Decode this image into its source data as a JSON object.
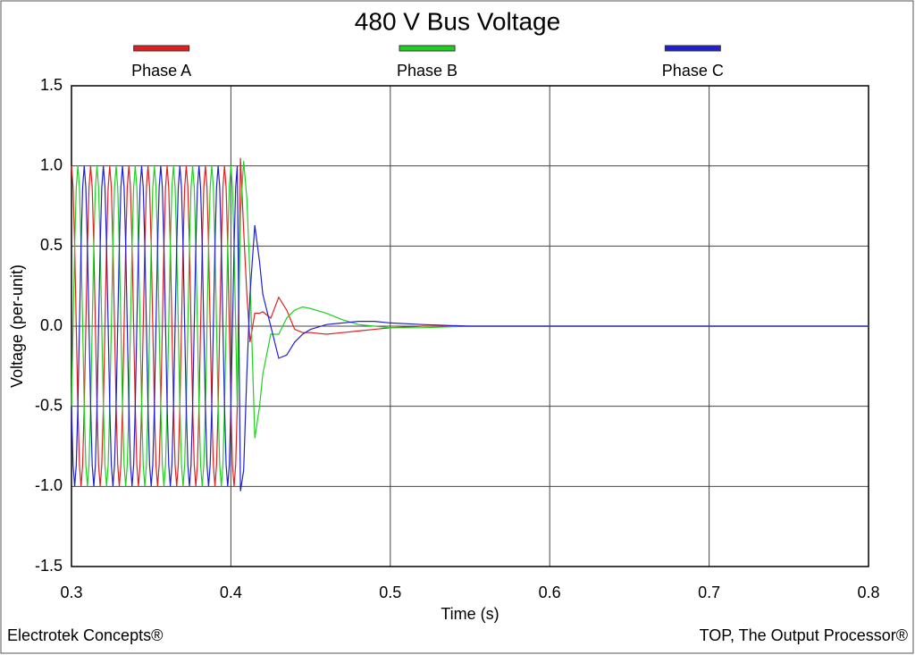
{
  "chart_data": {
    "type": "line",
    "title": "480 V Bus Voltage",
    "x_label": "Time (s)",
    "y_label": "Voltage (per-unit)",
    "footer_left": "Electrotek Concepts®",
    "footer_right": "TOP, The Output Processor®",
    "xlim": [
      0.3,
      0.8
    ],
    "ylim": [
      -1.5,
      1.5
    ],
    "xticks": [
      0.3,
      0.4,
      0.5,
      0.6,
      0.7,
      0.8
    ],
    "yticks": [
      -1.5,
      {
        "value": -1,
        "label": "-1.0"
      },
      -0.5,
      {
        "value": 0,
        "label": "0.0"
      },
      0.5,
      {
        "value": 1,
        "label": "1.0"
      },
      1.5
    ],
    "grid": true,
    "x": [
      0.3,
      0.301,
      0.302,
      0.303,
      0.304,
      0.305,
      0.306,
      0.307,
      0.308,
      0.309,
      0.31,
      0.311,
      0.312,
      0.313,
      0.314,
      0.315,
      0.316,
      0.317,
      0.318,
      0.319,
      0.32,
      0.321,
      0.322,
      0.323,
      0.324,
      0.325,
      0.326,
      0.327,
      0.328,
      0.329,
      0.33,
      0.331,
      0.332,
      0.333,
      0.334,
      0.335,
      0.336,
      0.337,
      0.338,
      0.339,
      0.34,
      0.341,
      0.342,
      0.343,
      0.344,
      0.345,
      0.346,
      0.347,
      0.348,
      0.349,
      0.35,
      0.351,
      0.352,
      0.353,
      0.354,
      0.355,
      0.356,
      0.357,
      0.358,
      0.359,
      0.36,
      0.361,
      0.362,
      0.363,
      0.364,
      0.365,
      0.366,
      0.367,
      0.368,
      0.369,
      0.37,
      0.371,
      0.372,
      0.373,
      0.374,
      0.375,
      0.376,
      0.377,
      0.378,
      0.379,
      0.38,
      0.381,
      0.382,
      0.383,
      0.384,
      0.385,
      0.386,
      0.387,
      0.388,
      0.389,
      0.39,
      0.391,
      0.392,
      0.393,
      0.394,
      0.395,
      0.396,
      0.397,
      0.398,
      0.399,
      0.4,
      0.401,
      0.402,
      0.403,
      0.404,
      0.406,
      0.408,
      0.41,
      0.412,
      0.415,
      0.418,
      0.42,
      0.425,
      0.43,
      0.435,
      0.44,
      0.445,
      0.45,
      0.46,
      0.47,
      0.48,
      0.49,
      0.5,
      0.52,
      0.55,
      0.6,
      0.7,
      0.8
    ],
    "series": [
      {
        "name": "Phase A",
        "color": "#e02020",
        "values": [
          1,
          0.866,
          0.5,
          0,
          -0.5,
          -0.866,
          -1,
          -0.866,
          -0.5,
          0,
          0.5,
          0.866,
          1,
          0.866,
          0.5,
          0,
          -0.5,
          -0.866,
          -1,
          -0.866,
          -0.5,
          0,
          0.5,
          0.866,
          1,
          0.866,
          0.5,
          0,
          -0.5,
          -0.866,
          -1,
          -0.866,
          -0.5,
          0,
          0.5,
          0.866,
          1,
          0.866,
          0.5,
          0,
          -0.5,
          -0.866,
          -1,
          -0.866,
          -0.5,
          0,
          0.5,
          0.866,
          1,
          0.866,
          0.5,
          0,
          -0.5,
          -0.866,
          -1,
          -0.866,
          -0.5,
          0,
          0.5,
          0.866,
          1,
          0.866,
          0.5,
          0,
          -0.5,
          -0.866,
          -1,
          -0.866,
          -0.5,
          0,
          0.5,
          0.866,
          1,
          0.866,
          0.5,
          0,
          -0.5,
          -0.866,
          -1,
          -0.866,
          -0.5,
          0,
          0.5,
          0.866,
          1,
          0.866,
          0.5,
          0,
          -0.5,
          -0.866,
          -1,
          -0.866,
          -0.5,
          0,
          0.5,
          0.866,
          1,
          0.866,
          0.5,
          0,
          -0.5,
          -0.866,
          -1,
          -0.866,
          -0.5,
          1.05,
          0.6,
          0.2,
          -0.1,
          0.08,
          0.08,
          0.09,
          0.05,
          0.18,
          0.1,
          -0.02,
          -0.04,
          -0.04,
          -0.05,
          -0.04,
          -0.03,
          -0.02,
          -0.01,
          0,
          0,
          0,
          0,
          0
        ]
      },
      {
        "name": "Phase B",
        "color": "#20d020",
        "values": [
          -0.5,
          0,
          0.5,
          0.866,
          1,
          0.866,
          0.5,
          0,
          -0.5,
          -0.866,
          -1,
          -0.866,
          -0.5,
          0,
          0.5,
          0.866,
          1,
          0.866,
          0.5,
          0,
          -0.5,
          -0.866,
          -1,
          -0.866,
          -0.5,
          0,
          0.5,
          0.866,
          1,
          0.866,
          0.5,
          0,
          -0.5,
          -0.866,
          -1,
          -0.866,
          -0.5,
          0,
          0.5,
          0.866,
          1,
          0.866,
          0.5,
          0,
          -0.5,
          -0.866,
          -1,
          -0.866,
          -0.5,
          0,
          0.5,
          0.866,
          1,
          0.866,
          0.5,
          0,
          -0.5,
          -0.866,
          -1,
          -0.866,
          -0.5,
          0,
          0.5,
          0.866,
          1,
          0.866,
          0.5,
          0,
          -0.5,
          -0.866,
          -1,
          -0.866,
          -0.5,
          0,
          0.5,
          0.866,
          1,
          0.866,
          0.5,
          0,
          -0.5,
          -0.866,
          -1,
          -0.866,
          -0.5,
          0,
          0.5,
          0.866,
          1,
          0.866,
          0.5,
          0,
          -0.5,
          -0.866,
          -1,
          -0.866,
          -0.5,
          0,
          0.5,
          0.866,
          1,
          0.866,
          0.5,
          0,
          -0.5,
          0.7,
          1.03,
          0.8,
          0.3,
          -0.7,
          -0.5,
          -0.3,
          -0.05,
          -0.05,
          0.05,
          0.1,
          0.12,
          0.11,
          0.08,
          0.04,
          0.01,
          0,
          -0.01,
          -0.01,
          0,
          0,
          0,
          0
        ]
      },
      {
        "name": "Phase C",
        "color": "#2020d0",
        "values": [
          -0.5,
          -0.866,
          -1,
          -0.866,
          -0.5,
          0,
          0.5,
          0.866,
          1,
          0.866,
          0.5,
          0,
          -0.5,
          -0.866,
          -1,
          -0.866,
          -0.5,
          0,
          0.5,
          0.866,
          1,
          0.866,
          0.5,
          0,
          -0.5,
          -0.866,
          -1,
          -0.866,
          -0.5,
          0,
          0.5,
          0.866,
          1,
          0.866,
          0.5,
          0,
          -0.5,
          -0.866,
          -1,
          -0.866,
          -0.5,
          0,
          0.5,
          0.866,
          1,
          0.866,
          0.5,
          0,
          -0.5,
          -0.866,
          -1,
          -0.866,
          -0.5,
          0,
          0.5,
          0.866,
          1,
          0.866,
          0.5,
          0,
          -0.5,
          -0.866,
          -1,
          -0.866,
          -0.5,
          0,
          0.5,
          0.866,
          1,
          0.866,
          0.5,
          0,
          -0.5,
          -0.866,
          -1,
          -0.866,
          -0.5,
          0,
          0.5,
          0.866,
          1,
          0.866,
          0.5,
          0,
          -0.5,
          -0.866,
          -1,
          -0.866,
          -0.5,
          0,
          0.5,
          0.866,
          1,
          0.866,
          0.5,
          0,
          -0.5,
          -0.866,
          -1,
          -0.866,
          -0.5,
          0,
          0.5,
          0.866,
          1,
          -1.03,
          -0.9,
          -0.3,
          0.2,
          0.63,
          0.4,
          0.2,
          0,
          -0.2,
          -0.18,
          -0.1,
          -0.05,
          -0.02,
          0.01,
          0.02,
          0.03,
          0.03,
          0.02,
          0.01,
          0,
          0,
          0,
          0
        ]
      }
    ]
  }
}
